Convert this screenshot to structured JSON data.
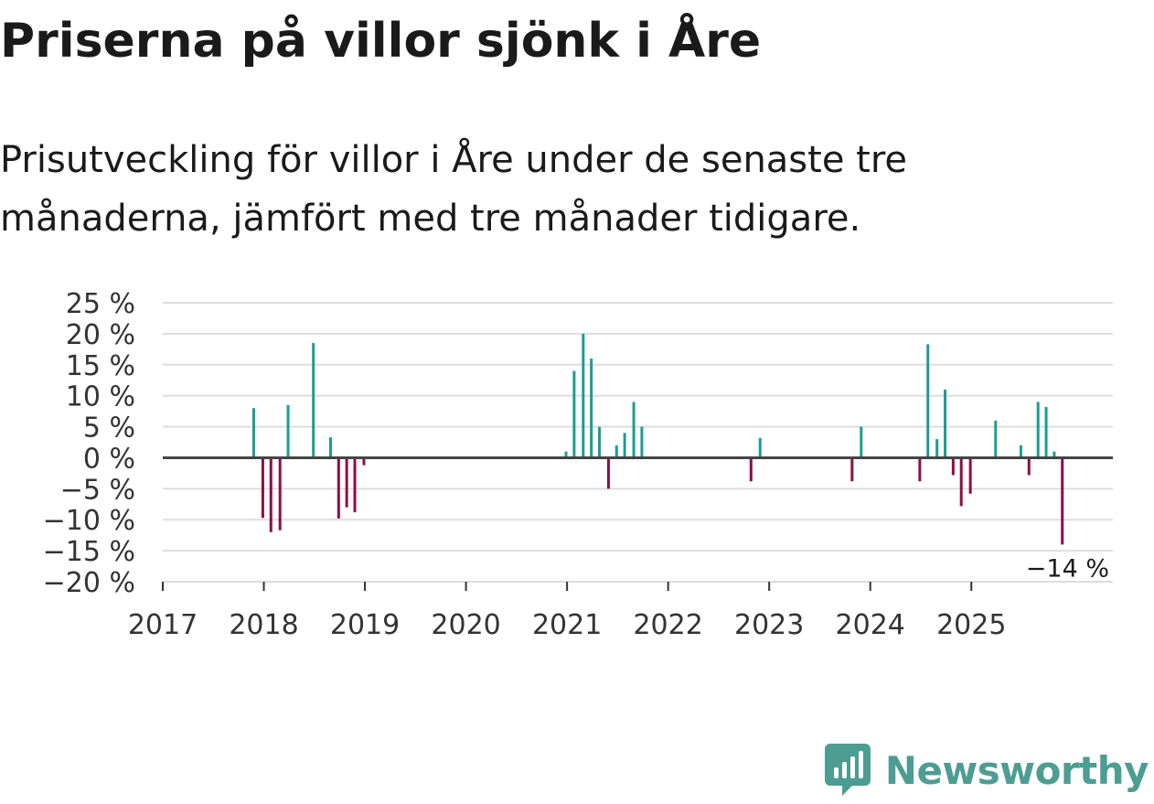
{
  "title": "Priserna på villor sjönk i Åre",
  "subtitle": "Prisutveckling för villor i Åre under de senaste tre månaderna, jämfört med tre månader tidigare.",
  "brand": {
    "name": "Newsworthy",
    "icon": "newsworthy-logo-icon",
    "color": "#4d9d93"
  },
  "colors": {
    "positive": "#1a9e91",
    "negative": "#8c0f45",
    "grid": "#dddddd",
    "zero": "#444444"
  },
  "chart_data": {
    "type": "bar",
    "title": "",
    "xlabel": "",
    "ylabel": "",
    "ylim": [
      -20,
      25
    ],
    "xlim": [
      2017,
      2026.4
    ],
    "y_ticks": [
      25,
      20,
      15,
      10,
      5,
      0,
      -5,
      -10,
      -15,
      -20
    ],
    "y_tick_labels": [
      "25 %",
      "20 %",
      "15 %",
      "10 %",
      "5 %",
      "0 %",
      "−5 %",
      "−10 %",
      "−15 %",
      "−20 %"
    ],
    "x_ticks": [
      2017,
      2018,
      2019,
      2020,
      2021,
      2022,
      2023,
      2024,
      2025
    ],
    "x_tick_labels": [
      "2017",
      "2018",
      "2019",
      "2020",
      "2021",
      "2022",
      "2023",
      "2024",
      "2025"
    ],
    "annotation": {
      "text": "−14 %",
      "x": 2025.9,
      "y": -14
    },
    "series": [
      {
        "name": "Prisutveckling",
        "x": [
          2017.9,
          2017.99,
          2018.07,
          2018.16,
          2018.24,
          2018.49,
          2018.66,
          2018.74,
          2018.82,
          2018.9,
          2018.99,
          2020.99,
          2021.07,
          2021.16,
          2021.24,
          2021.32,
          2021.41,
          2021.49,
          2021.57,
          2021.66,
          2021.74,
          2022.82,
          2022.91,
          2023.82,
          2023.91,
          2024.49,
          2024.57,
          2024.66,
          2024.74,
          2024.82,
          2024.9,
          2024.99,
          2025.24,
          2025.49,
          2025.57,
          2025.66,
          2025.74,
          2025.82,
          2025.9
        ],
        "values": [
          8,
          -9.7,
          -12,
          -11.7,
          8.5,
          18.5,
          3.3,
          -9.8,
          -8,
          -8.8,
          -1.2,
          1,
          14,
          20,
          16,
          5,
          -5,
          2,
          4,
          9,
          5,
          -3.8,
          3.2,
          -3.8,
          5,
          -3.8,
          18.3,
          3,
          11,
          -2.8,
          -7.8,
          -5.8,
          6,
          2,
          -2.8,
          9,
          8.2,
          1,
          -14
        ]
      }
    ]
  }
}
